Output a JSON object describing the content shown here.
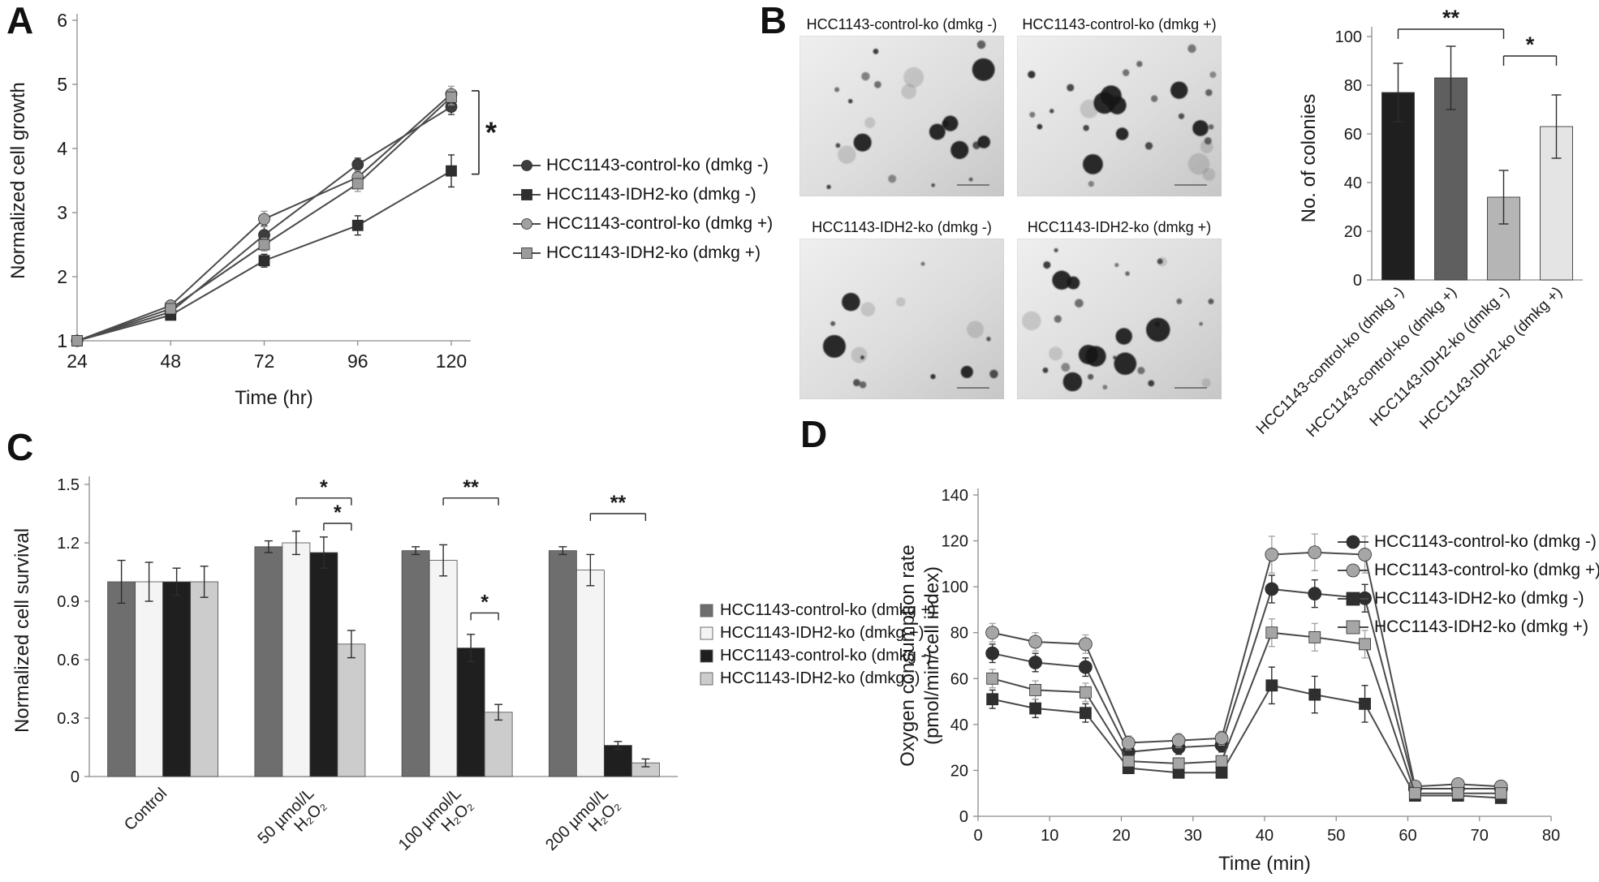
{
  "figure": {
    "background": "#ffffff",
    "panel_labels": {
      "a": "A",
      "b": "B",
      "c": "C",
      "d": "D"
    }
  },
  "chart_data": [
    {
      "id": "A",
      "type": "line",
      "title": "",
      "xlabel": "Time (hr)",
      "ylabel": "Normalized cell growth",
      "x": [
        24,
        48,
        72,
        96,
        120
      ],
      "xticks": [
        24,
        48,
        72,
        96,
        120
      ],
      "xlim": [
        24,
        125
      ],
      "ylim": [
        1,
        6
      ],
      "yticks": [
        1,
        2,
        3,
        4,
        5,
        6
      ],
      "grid": false,
      "legend_position": "right",
      "series": [
        {
          "name": "HCC1143-control-ko (dmkg -)",
          "marker": "circle",
          "color": "#3d3d3d",
          "values": [
            1.0,
            1.45,
            2.65,
            3.75,
            4.65
          ],
          "errors": [
            0.04,
            0.07,
            0.15,
            0.1,
            0.12
          ]
        },
        {
          "name": "HCC1143-IDH2-ko (dmkg -)",
          "marker": "square",
          "color": "#2e2e2e",
          "values": [
            1.0,
            1.4,
            2.25,
            2.8,
            3.65
          ],
          "errors": [
            0.04,
            0.07,
            0.1,
            0.15,
            0.25
          ]
        },
        {
          "name": "HCC1143-control-ko (dmkg +)",
          "marker": "circle",
          "color": "#a0a0a0",
          "values": [
            1.0,
            1.55,
            2.9,
            3.55,
            4.85
          ],
          "errors": [
            0.04,
            0.07,
            0.12,
            0.1,
            0.12
          ]
        },
        {
          "name": "HCC1143-IDH2-ko (dmkg +)",
          "marker": "square",
          "color": "#9b9b9b",
          "values": [
            1.0,
            1.5,
            2.5,
            3.45,
            4.8
          ],
          "errors": [
            0.04,
            0.07,
            0.1,
            0.12,
            0.12
          ]
        }
      ],
      "annotation": {
        "label": "*",
        "x": 120,
        "y_top": 4.9,
        "y_bottom": 3.6
      }
    },
    {
      "id": "B",
      "type": "bar",
      "title": "",
      "xlabel": "",
      "ylabel": "No. of colonies",
      "categories": [
        "HCC1143-control-ko (dmkg -)",
        "HCC1143-control-ko (dmkg +)",
        "HCC1143-IDH2-ko (dmkg -)",
        "HCC1143-IDH2-ko (dmkg +)"
      ],
      "values": [
        77,
        83,
        34,
        63
      ],
      "errors": [
        12,
        13,
        11,
        13
      ],
      "bar_colors": [
        "#1f1f1f",
        "#5f5f5f",
        "#b5b5b5",
        "#e4e4e4"
      ],
      "ylim": [
        0,
        100
      ],
      "yticks": [
        0,
        20,
        40,
        60,
        80,
        100
      ],
      "grid": false,
      "brackets": [
        {
          "from": 0,
          "to": 2,
          "label": "**",
          "y": 103
        },
        {
          "from": 2,
          "to": 3,
          "label": "*",
          "y": 92
        }
      ]
    },
    {
      "id": "C",
      "type": "grouped_bar",
      "title": "",
      "xlabel": "",
      "ylabel": "Normalized cell survival",
      "categories": [
        "Control",
        "50 µmol/L\nH₂O₂",
        "100 µmol/L\nH₂O₂",
        "200 µmol/L\nH₂O₂"
      ],
      "ylim": [
        0,
        1.5
      ],
      "yticks": [
        0,
        0.3,
        0.6,
        0.9,
        1.2,
        1.5
      ],
      "grid": false,
      "legend_position": "right",
      "series": [
        {
          "name": "HCC1143-control-ko (dmkg +)",
          "color": "#6e6e6e",
          "values": [
            1.0,
            1.18,
            1.16,
            1.16
          ],
          "errors": [
            0.11,
            0.03,
            0.02,
            0.02
          ]
        },
        {
          "name": "HCC1143-IDH2-ko (dmkg +)",
          "color": "#f4f4f4",
          "values": [
            1.0,
            1.2,
            1.11,
            1.06
          ],
          "errors": [
            0.1,
            0.06,
            0.08,
            0.08
          ]
        },
        {
          "name": "HCC1143-control-ko (dmkg -)",
          "color": "#1f1f1f",
          "values": [
            1.0,
            1.15,
            0.66,
            0.16
          ],
          "errors": [
            0.07,
            0.08,
            0.07,
            0.02
          ]
        },
        {
          "name": "HCC1143-IDH2-ko (dmkg -)",
          "color": "#cccccc",
          "values": [
            1.0,
            0.68,
            0.33,
            0.07
          ],
          "errors": [
            0.08,
            0.07,
            0.04,
            0.02
          ]
        }
      ],
      "brackets": [
        {
          "group": 1,
          "from": 1,
          "to": 3,
          "label": "*",
          "y": 1.43
        },
        {
          "group": 1,
          "from": 2,
          "to": 3,
          "label": "*",
          "y": 1.3
        },
        {
          "group": 2,
          "from": 1,
          "to": 3,
          "label": "**",
          "y": 1.43
        },
        {
          "group": 2,
          "from": 2,
          "to": 3,
          "label": "*",
          "y": 0.84
        },
        {
          "group": 3,
          "from": 1,
          "to": 3,
          "label": "**",
          "y": 1.35
        }
      ]
    },
    {
      "id": "D",
      "type": "line",
      "title": "",
      "xlabel": "Time (min)",
      "ylabel": "Oxygen consumption rate\n(pmol/min/cell index)",
      "x": [
        2,
        8,
        15,
        21,
        28,
        34,
        41,
        47,
        54,
        61,
        67,
        73
      ],
      "xticks": [
        0,
        10,
        20,
        30,
        40,
        50,
        60,
        70,
        80
      ],
      "xlim": [
        0,
        80
      ],
      "ylim": [
        0,
        140
      ],
      "yticks": [
        0,
        20,
        40,
        60,
        80,
        100,
        120,
        140
      ],
      "grid": false,
      "legend_position": "right",
      "series": [
        {
          "name": "HCC1143-control-ko (dmkg -)",
          "marker": "circle",
          "color": "#2f2f2f",
          "values": [
            71,
            67,
            65,
            28,
            30,
            31,
            99,
            97,
            95,
            12,
            12,
            12
          ],
          "errors": [
            4,
            4,
            4,
            3,
            3,
            3,
            6,
            6,
            6,
            2,
            2,
            2
          ]
        },
        {
          "name": "HCC1143-control-ko (dmkg +)",
          "marker": "circle",
          "color": "#a6a6a6",
          "values": [
            80,
            76,
            75,
            32,
            33,
            34,
            114,
            115,
            114,
            13,
            14,
            13
          ],
          "errors": [
            4,
            4,
            4,
            3,
            3,
            3,
            8,
            8,
            8,
            2,
            2,
            2
          ]
        },
        {
          "name": "HCC1143-IDH2-ko (dmkg -)",
          "marker": "square",
          "color": "#2f2f2f",
          "values": [
            51,
            47,
            45,
            21,
            19,
            19,
            57,
            53,
            49,
            9,
            9,
            8
          ],
          "errors": [
            4,
            4,
            4,
            2,
            2,
            2,
            8,
            8,
            8,
            2,
            2,
            2
          ]
        },
        {
          "name": "HCC1143-IDH2-ko (dmkg +)",
          "marker": "square",
          "color": "#a6a6a6",
          "values": [
            60,
            55,
            54,
            24,
            23,
            24,
            80,
            78,
            75,
            10,
            10,
            10
          ],
          "errors": [
            4,
            4,
            4,
            2,
            2,
            2,
            6,
            6,
            6,
            2,
            2,
            2
          ]
        }
      ]
    }
  ],
  "panel_b_images": [
    {
      "title": "HCC1143-control-ko (dmkg -)",
      "large_colonies": 6,
      "small_colonies": 13
    },
    {
      "title": "HCC1143-control-ko (dmkg +)",
      "large_colonies": 7,
      "small_colonies": 17
    },
    {
      "title": "HCC1143-IDH2-ko (dmkg -)",
      "large_colonies": 3,
      "small_colonies": 8
    },
    {
      "title": "HCC1143-IDH2-ko (dmkg +)",
      "large_colonies": 8,
      "small_colonies": 18
    }
  ]
}
